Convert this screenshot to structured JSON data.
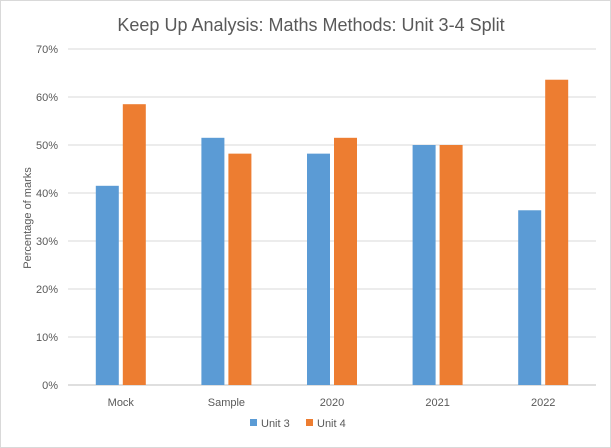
{
  "chart_data": {
    "type": "bar",
    "title": "Keep Up Analysis: Maths Methods: Unit 3-4 Split",
    "xlabel": "",
    "ylabel": "Percentage of marks",
    "categories": [
      "Mock",
      "Sample",
      "2020",
      "2021",
      "2022"
    ],
    "series": [
      {
        "name": "Unit 3",
        "color": "#5b9bd5",
        "values": [
          41.5,
          51.5,
          48.2,
          50.0,
          36.4
        ]
      },
      {
        "name": "Unit 4",
        "color": "#ed7d31",
        "values": [
          58.5,
          48.2,
          51.5,
          50.0,
          63.6
        ]
      }
    ],
    "ylim": [
      0,
      70
    ],
    "yticks": [
      "0%",
      "10%",
      "20%",
      "30%",
      "40%",
      "50%",
      "60%",
      "70%"
    ],
    "grid": true,
    "legend_position": "bottom"
  }
}
